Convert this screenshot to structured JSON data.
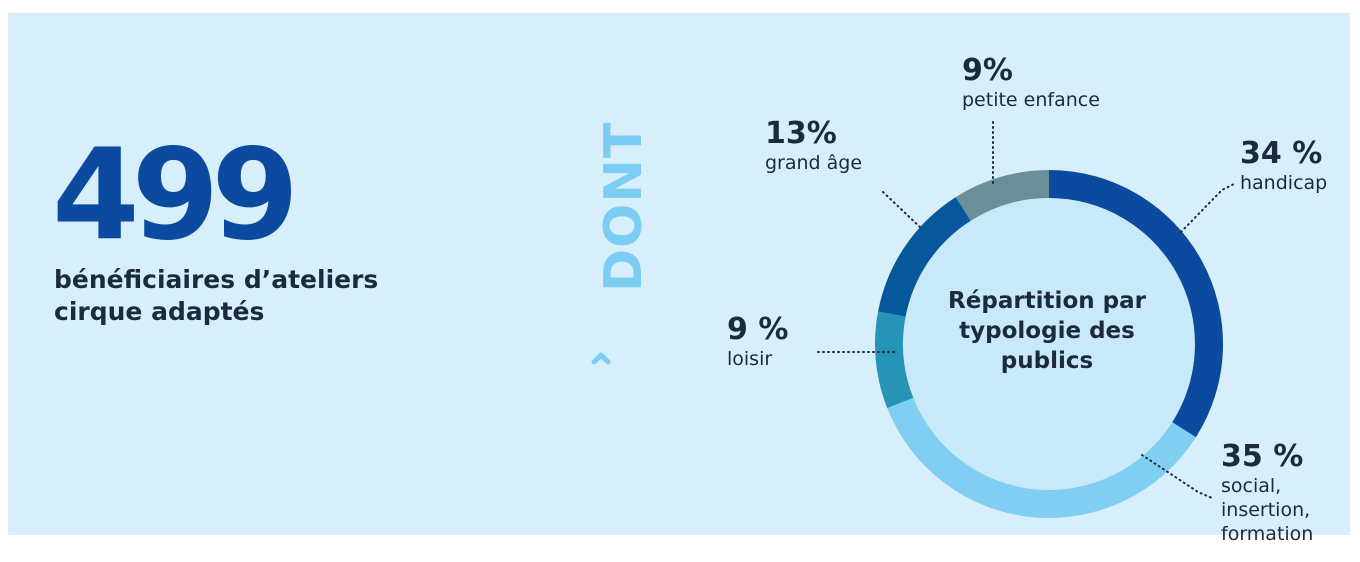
{
  "headline": {
    "number": "499",
    "label": "bénéficiaires d’ateliers cirque adaptés"
  },
  "separator": {
    "text": "DONT",
    "icon": "chevron-right-icon"
  },
  "chart_data": {
    "type": "pie",
    "title": "Répartition par typologie des publics",
    "slices": [
      {
        "pct_label": "34 %",
        "label": "handicap",
        "value": 34,
        "color": "#0c4aa0"
      },
      {
        "pct_label": "35 %",
        "label": "social, insertion, formation",
        "value": 35,
        "color": "#80cff2"
      },
      {
        "pct_label": "9 %",
        "label": "loisir",
        "value": 9,
        "color": "#2694b6"
      },
      {
        "pct_label": "13%",
        "label": "grand âge",
        "value": 13,
        "color": "#07579b"
      },
      {
        "pct_label": "9%",
        "label": "petite enfance",
        "value": 9,
        "color": "#6b8f99"
      }
    ]
  }
}
